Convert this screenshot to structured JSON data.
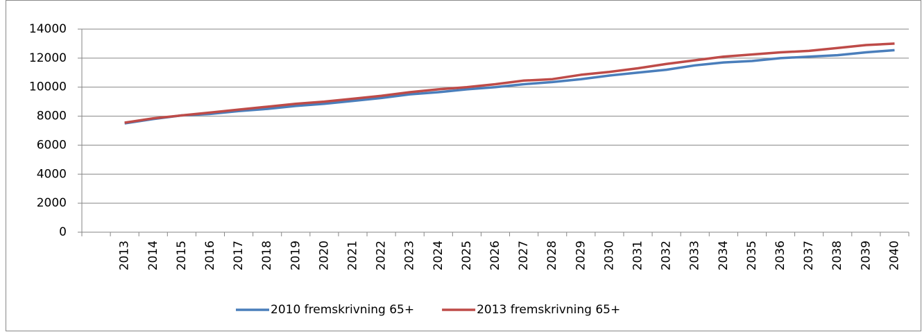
{
  "chart_data": {
    "type": "line",
    "categories": [
      null,
      "2013",
      "2014",
      "2015",
      "2016",
      "2017",
      "2018",
      "2019",
      "2020",
      "2021",
      "2022",
      "2023",
      "2024",
      "2025",
      "2026",
      "2027",
      "2028",
      "2029",
      "2030",
      "2031",
      "2032",
      "2033",
      "2034",
      "2035",
      "2036",
      "2037",
      "2038",
      "2039",
      "2040"
    ],
    "series": [
      {
        "name": "2010 fremskrivning 65+",
        "color": "#4a7ebb",
        "values": [
          null,
          7500,
          7800,
          8050,
          8150,
          8350,
          8500,
          8700,
          8850,
          9050,
          9250,
          9500,
          9650,
          9850,
          10000,
          10200,
          10350,
          10550,
          10800,
          11000,
          11200,
          11500,
          11700,
          11800,
          12000,
          12100,
          12200,
          12400,
          12550
        ]
      },
      {
        "name": "2013 fremskrivning 65+",
        "color": "#be4b48",
        "values": [
          null,
          7550,
          7850,
          8050,
          8250,
          8450,
          8650,
          8850,
          9000,
          9200,
          9400,
          9650,
          9850,
          10000,
          10200,
          10450,
          10550,
          10850,
          11050,
          11300,
          11600,
          11850,
          12100,
          12250,
          12400,
          12500,
          12700,
          12900,
          13000
        ]
      }
    ],
    "ylim": [
      0,
      14000
    ],
    "yticks": [
      0,
      2000,
      4000,
      6000,
      8000,
      10000,
      12000,
      14000
    ],
    "grid": true,
    "legend": "bottom"
  }
}
